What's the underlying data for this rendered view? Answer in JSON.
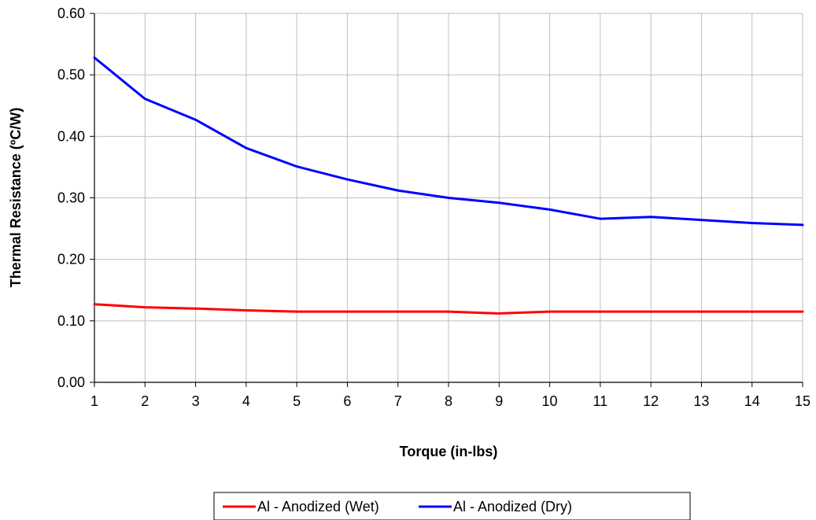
{
  "chart_data": {
    "type": "line",
    "title": "",
    "xlabel": "Torque (in-lbs)",
    "ylabel": "Thermal Resistance (ºC/W)",
    "x": [
      1,
      2,
      3,
      4,
      5,
      6,
      7,
      8,
      9,
      10,
      11,
      12,
      13,
      14,
      15
    ],
    "xlim": [
      1,
      15
    ],
    "ylim": [
      0,
      0.6
    ],
    "yticks": [
      "0.00",
      "0.10",
      "0.20",
      "0.30",
      "0.40",
      "0.50",
      "0.60"
    ],
    "grid": true,
    "legend_position": "bottom",
    "series": [
      {
        "name": "Al - Anodized (Wet)",
        "color": "#ff0000",
        "values": [
          0.127,
          0.122,
          0.12,
          0.117,
          0.115,
          0.115,
          0.115,
          0.115,
          0.112,
          0.115,
          0.115,
          0.115,
          0.115,
          0.115,
          0.115
        ]
      },
      {
        "name": "Al - Anodized (Dry)",
        "color": "#0000ff",
        "values": [
          0.528,
          0.461,
          0.427,
          0.381,
          0.351,
          0.33,
          0.312,
          0.3,
          0.292,
          0.281,
          0.266,
          0.269,
          0.264,
          0.259,
          0.256
        ]
      }
    ]
  }
}
